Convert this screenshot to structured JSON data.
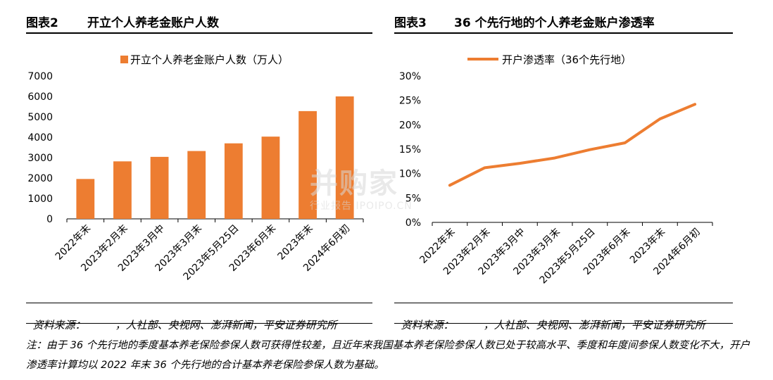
{
  "left_panel": {
    "label": "图表2",
    "title": "开立个人养老金账户人数",
    "source_label": "资料来源：",
    "source_text": "，人社部、央视网、澎湃新闻，平安证券研究所"
  },
  "right_panel": {
    "label": "图表3",
    "title": "36 个先行地的个人养老金账户渗透率",
    "source_label": "资料来源：",
    "source_text": "，人社部、央视网、澎湃新闻，平安证券研究所"
  },
  "note": "注：由于 36 个先行地的季度基本养老保险参保人数可获得性较差，且近年来我国基本养老保险参保人数已处于较高水平、季度和年度间参保人数变化不大，开户渗透率计算均以 2022 年末 36 个先行地的合计基本养老保险参保人数为基础。",
  "watermark": {
    "main": "并购家",
    "sub": "行业报告 IPOIPO.CN"
  },
  "colors": {
    "accent": "#ED7D31",
    "axis": "#000000"
  },
  "chart_data": [
    {
      "type": "bar",
      "categories": [
        "2022年末",
        "2023年2月末",
        "2023年3月中",
        "2023年3月末",
        "2023年5月25日",
        "2023年6月末",
        "2023年末",
        "2024年6月初"
      ],
      "series": [
        {
          "name": "开立个人养老金账户人数（万人）",
          "values": [
            1954,
            2817,
            3038,
            3324,
            3700,
            4030,
            5280,
            6000
          ]
        }
      ],
      "ylim": [
        0,
        7000
      ],
      "yticks": [
        "0",
        "1000",
        "2000",
        "3000",
        "4000",
        "5000",
        "6000",
        "7000"
      ],
      "legend": "top-center",
      "grid": false
    },
    {
      "type": "line",
      "categories": [
        "2022年末",
        "2023年2月末",
        "2023年3月中",
        "2023年3月末",
        "2023年5月25日",
        "2023年6月末",
        "2023年末",
        "2024年6月初"
      ],
      "series": [
        {
          "name": "开户渗透率（36个先行地）",
          "values": [
            7.6,
            11.2,
            12.1,
            13.2,
            14.9,
            16.3,
            21.2,
            24.2
          ]
        }
      ],
      "ylim": [
        0,
        30
      ],
      "yticks": [
        "0%",
        "5%",
        "10%",
        "15%",
        "20%",
        "25%",
        "30%"
      ],
      "legend": "top-center",
      "grid": false
    }
  ]
}
